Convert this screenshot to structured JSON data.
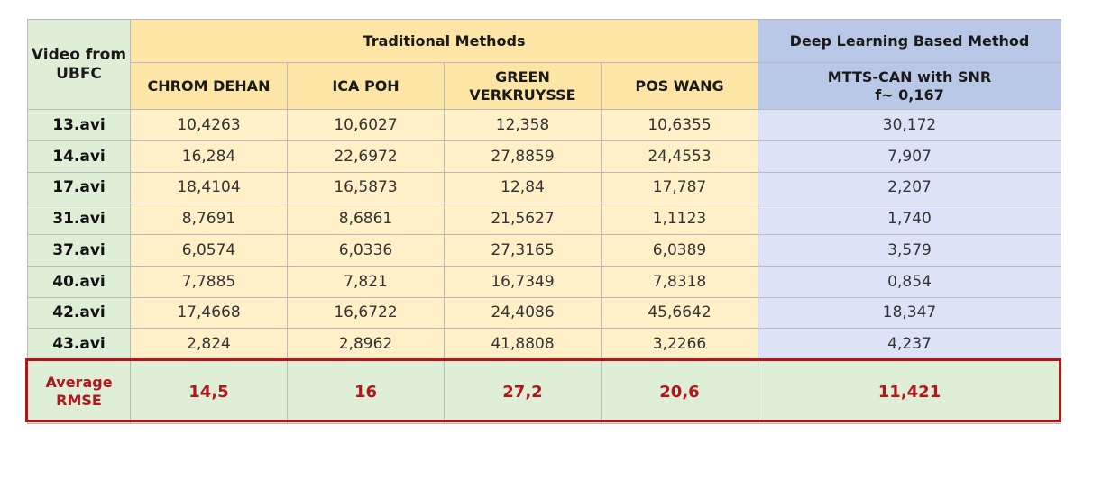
{
  "header": {
    "col0": "Video from UBFC",
    "traditional": "Traditional Methods",
    "deep": "Deep Learning Based Method",
    "methods": [
      "CHROM DEHAN",
      "ICA POH",
      "GREEN VERKRUYSSE",
      "POS WANG"
    ],
    "deep_method_line1": "MTTS-CAN with SNR",
    "deep_method_line2": "f~ 0,167"
  },
  "rows": [
    {
      "video": "13.avi",
      "values": [
        "10,4263",
        "10,6027",
        "12,358",
        "10,6355",
        "30,172"
      ]
    },
    {
      "video": "14.avi",
      "values": [
        "16,284",
        "22,6972",
        "27,8859",
        "24,4553",
        "7,907"
      ]
    },
    {
      "video": "17.avi",
      "values": [
        "18,4104",
        "16,5873",
        "12,84",
        "17,787",
        "2,207"
      ]
    },
    {
      "video": "31.avi",
      "values": [
        "8,7691",
        "8,6861",
        "21,5627",
        "1,1123",
        "1,740"
      ]
    },
    {
      "video": "37.avi",
      "values": [
        "6,0574",
        "6,0336",
        "27,3165",
        "6,0389",
        "3,579"
      ]
    },
    {
      "video": "40.avi",
      "values": [
        "7,7885",
        "7,821",
        "16,7349",
        "7,8318",
        "0,854"
      ]
    },
    {
      "video": "42.avi",
      "values": [
        "17,4668",
        "16,6722",
        "24,4086",
        "45,6642",
        "18,347"
      ]
    },
    {
      "video": "43.avi",
      "values": [
        "2,824",
        "2,8962",
        "41,8808",
        "3,2266",
        "4,237"
      ]
    }
  ],
  "average": {
    "label": "Average RMSE",
    "values": [
      "14,5",
      "16",
      "27,2",
      "20,6",
      "11,421"
    ]
  },
  "colors": {
    "green": "#dfeed6",
    "yellow_header": "#fde5a6",
    "yellow_body": "#fff0c8",
    "blue_header": "#b9c8e6",
    "blue_body": "#dde3f6",
    "highlight_red": "#b0161c"
  }
}
